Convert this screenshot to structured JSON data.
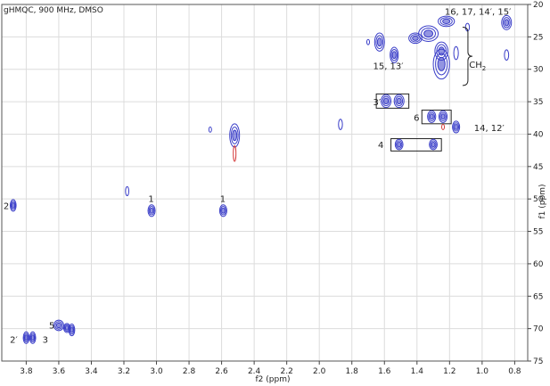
{
  "chart_data": {
    "type": "scatter",
    "title": "gHMQC, 900 MHz, DMSO",
    "xlabel": "f2 (ppm)",
    "ylabel": "f1 (ppm)",
    "xlim": [
      3.95,
      0.72
    ],
    "ylim": [
      20,
      75
    ],
    "x_reversed": true,
    "y_reversed": true,
    "x_ticks": [
      "3.8",
      "3.6",
      "3.4",
      "3.2",
      "3.0",
      "2.8",
      "2.6",
      "2.4",
      "2.2",
      "2.0",
      "1.8",
      "1.6",
      "1.4",
      "1.2",
      "1.0",
      "0.8"
    ],
    "y_ticks": [
      "20",
      "25",
      "30",
      "35",
      "40",
      "45",
      "50",
      "55",
      "60",
      "65",
      "70",
      "75"
    ],
    "grid": true,
    "colors": {
      "positive": "#3a3ec8",
      "negative": "#d43a3a",
      "grid": "#dcdcdc",
      "frame": "#555555"
    },
    "peaks": [
      {
        "x": 3.88,
        "y": 51.0,
        "rx": 0.018,
        "ry": 0.9
      },
      {
        "x": 3.03,
        "y": 51.8,
        "rx": 0.022,
        "ry": 0.9
      },
      {
        "x": 2.59,
        "y": 51.8,
        "rx": 0.022,
        "ry": 0.9
      },
      {
        "x": 3.18,
        "y": 48.8,
        "rx": 0.01,
        "ry": 0.7
      },
      {
        "x": 2.52,
        "y": 40.2,
        "rx": 0.03,
        "ry": 1.8
      },
      {
        "x": 2.67,
        "y": 39.3,
        "rx": 0.006,
        "ry": 0.4
      },
      {
        "x": 1.87,
        "y": 38.5,
        "rx": 0.012,
        "ry": 0.8
      },
      {
        "x": 1.7,
        "y": 25.8,
        "rx": 0.006,
        "ry": 0.4
      },
      {
        "x": 1.63,
        "y": 25.8,
        "rx": 0.03,
        "ry": 1.4
      },
      {
        "x": 1.54,
        "y": 27.8,
        "rx": 0.025,
        "ry": 1.2
      },
      {
        "x": 1.41,
        "y": 25.2,
        "rx": 0.04,
        "ry": 0.8
      },
      {
        "x": 1.33,
        "y": 24.5,
        "rx": 0.06,
        "ry": 1.2
      },
      {
        "x": 1.25,
        "y": 27.2,
        "rx": 0.04,
        "ry": 1.4
      },
      {
        "x": 1.25,
        "y": 29.2,
        "rx": 0.05,
        "ry": 2.3
      },
      {
        "x": 1.22,
        "y": 22.6,
        "rx": 0.05,
        "ry": 0.8
      },
      {
        "x": 1.16,
        "y": 27.5,
        "rx": 0.014,
        "ry": 1.0
      },
      {
        "x": 1.09,
        "y": 23.5,
        "rx": 0.012,
        "ry": 0.6
      },
      {
        "x": 0.85,
        "y": 22.8,
        "rx": 0.03,
        "ry": 1.1
      },
      {
        "x": 0.85,
        "y": 27.8,
        "rx": 0.013,
        "ry": 0.8
      },
      {
        "x": 1.51,
        "y": 34.9,
        "rx": 0.03,
        "ry": 1.0
      },
      {
        "x": 1.59,
        "y": 34.9,
        "rx": 0.03,
        "ry": 1.0
      },
      {
        "x": 1.31,
        "y": 37.3,
        "rx": 0.025,
        "ry": 0.9
      },
      {
        "x": 1.24,
        "y": 37.3,
        "rx": 0.025,
        "ry": 0.9
      },
      {
        "x": 1.16,
        "y": 38.9,
        "rx": 0.022,
        "ry": 0.9
      },
      {
        "x": 1.51,
        "y": 41.6,
        "rx": 0.024,
        "ry": 0.8
      },
      {
        "x": 1.3,
        "y": 41.6,
        "rx": 0.024,
        "ry": 0.8
      },
      {
        "x": 3.6,
        "y": 69.5,
        "rx": 0.03,
        "ry": 0.8
      },
      {
        "x": 3.55,
        "y": 69.9,
        "rx": 0.02,
        "ry": 0.7
      },
      {
        "x": 3.52,
        "y": 70.2,
        "rx": 0.018,
        "ry": 0.9
      },
      {
        "x": 3.8,
        "y": 71.4,
        "rx": 0.018,
        "ry": 0.9
      },
      {
        "x": 3.76,
        "y": 71.4,
        "rx": 0.018,
        "ry": 0.9
      }
    ],
    "negative_peaks": [
      {
        "x": 2.52,
        "y": 43.0,
        "rx": 0.006,
        "ry": 1.2
      },
      {
        "x": 1.24,
        "y": 38.9,
        "rx": 0.004,
        "ry": 0.4
      }
    ],
    "annotations": [
      {
        "text": "16, 17, 14′, 15′",
        "x": 1.23,
        "y": 21.0
      },
      {
        "text": "CH",
        "sub": "2",
        "x": 1.08,
        "y": 29.2
      },
      {
        "text": "15, 13′",
        "x": 1.67,
        "y": 29.4
      },
      {
        "text": "3′",
        "x": 1.67,
        "y": 35.0
      },
      {
        "text": "6",
        "x": 1.42,
        "y": 37.4
      },
      {
        "text": "14, 12′",
        "x": 1.05,
        "y": 39.0
      },
      {
        "text": "4",
        "x": 1.64,
        "y": 41.6
      },
      {
        "text": "2",
        "x": 3.94,
        "y": 51.0
      },
      {
        "text": "1",
        "x": 3.05,
        "y": 49.9
      },
      {
        "text": "1",
        "x": 2.61,
        "y": 49.9
      },
      {
        "text": "5",
        "x": 3.66,
        "y": 69.4
      },
      {
        "text": "2′",
        "x": 3.9,
        "y": 71.6
      },
      {
        "text": "3",
        "x": 3.7,
        "y": 71.6
      }
    ],
    "boxes": [
      {
        "x1": 1.65,
        "x2": 1.45,
        "y1": 33.8,
        "y2": 36.0
      },
      {
        "x1": 1.37,
        "x2": 1.19,
        "y1": 36.3,
        "y2": 38.4
      },
      {
        "x1": 1.56,
        "x2": 1.25,
        "y1": 40.7,
        "y2": 42.6
      }
    ]
  }
}
